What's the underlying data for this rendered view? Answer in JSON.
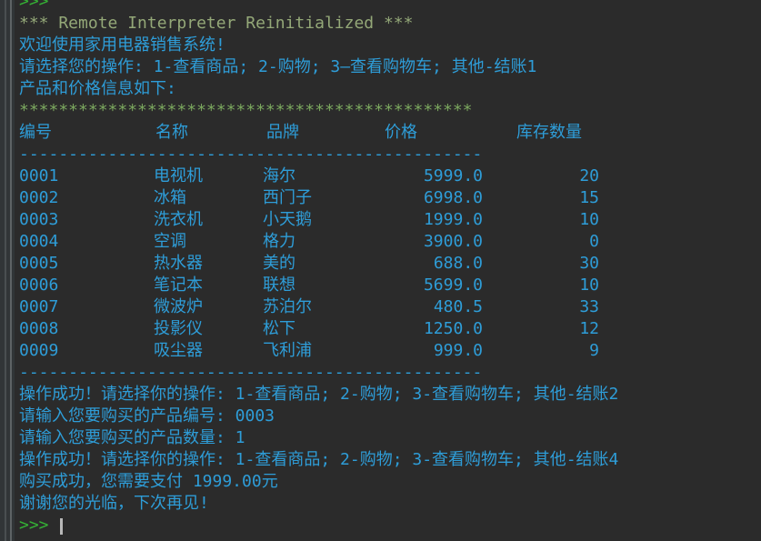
{
  "colors": {
    "background": "#2b2b2b",
    "output_cyan": "#2e9dd8",
    "prompt_green": "#35b135",
    "system_green": "#94a878",
    "separator_green": "#7ca95f",
    "cursor": "#b8b8b8"
  },
  "console": {
    "prompt": ">>> ",
    "top_prompt": ">>> ",
    "reinit_line": "*** Remote Interpreter Reinitialized ***",
    "intro_lines": [
      "欢迎使用家用电器销售系统!",
      "请选择您的操作: 1-查看商品; 2-购物; 3—查看购物车; 其他-结账1",
      "产品和价格信息如下:"
    ],
    "separator_stars": "**********************************************",
    "separator_dashes": "-----------------------------------------------",
    "table": {
      "headers": [
        "编号",
        "名称",
        "品牌",
        "价格",
        "库存数量"
      ],
      "rows": [
        [
          "0001",
          "电视机",
          "海尔",
          "5999.0",
          "20"
        ],
        [
          "0002",
          "冰箱",
          "西门子",
          "6998.0",
          "15"
        ],
        [
          "0003",
          "洗衣机",
          "小天鹅",
          "1999.0",
          "10"
        ],
        [
          "0004",
          "空调",
          "格力",
          "3900.0",
          "0"
        ],
        [
          "0005",
          "热水器",
          "美的",
          "688.0",
          "30"
        ],
        [
          "0006",
          "笔记本",
          "联想",
          "5699.0",
          "10"
        ],
        [
          "0007",
          "微波炉",
          "苏泊尔",
          "480.5",
          "33"
        ],
        [
          "0008",
          "投影仪",
          "松下",
          "1250.0",
          "12"
        ],
        [
          "0009",
          "吸尘器",
          "飞利浦",
          "999.0",
          "9"
        ]
      ]
    },
    "output_lines": [
      "操作成功！请选择你的操作: 1-查看商品; 2-购物; 3-查看购物车; 其他-结账2",
      "请输入您要购买的产品编号: 0003",
      "请输入您要购买的产品数量: 1",
      "操作成功！请选择你的操作: 1-查看商品; 2-购物; 3-查看购物车; 其他-结账4",
      "购买成功，您需要支付 1999.00元",
      "谢谢您的光临，下次再见!"
    ]
  }
}
